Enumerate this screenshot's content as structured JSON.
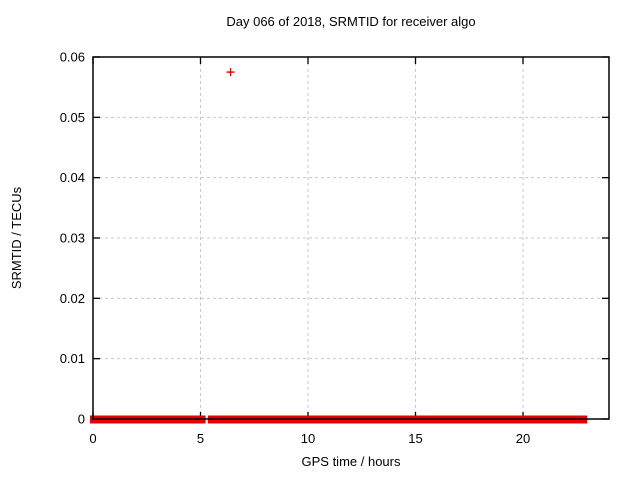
{
  "window": {
    "background": "#ffffff"
  },
  "chart_data": {
    "type": "scatter",
    "title": "Day 066 of 2018, SRMTID for receiver algo",
    "xlabel": "GPS time / hours",
    "ylabel": "SRMTID / TECUs",
    "xlim": [
      0,
      24
    ],
    "ylim": [
      0,
      0.06
    ],
    "xticks": {
      "values": [
        0,
        5,
        10,
        15,
        20
      ],
      "labels": [
        "0",
        "5",
        "10",
        "15",
        "20"
      ]
    },
    "yticks": {
      "values": [
        0,
        0.01,
        0.02,
        0.03,
        0.04,
        0.05,
        0.06
      ],
      "labels": [
        "0",
        "0.01",
        "0.02",
        "0.03",
        "0.04",
        "0.05",
        "0.06"
      ]
    },
    "grid": "dashed",
    "legend": "none",
    "marker": "plus",
    "series": [
      {
        "name": "SRMTID",
        "color": "#e60000",
        "outlier_points": [
          {
            "x": 6.4,
            "y": 0.0575
          }
        ],
        "baseline_y": 0,
        "baseline_segments_hours": [
          [
            0.0,
            1.5
          ],
          [
            1.6,
            1.72
          ],
          [
            1.98,
            4.38
          ],
          [
            4.55,
            5.1
          ],
          [
            5.48,
            11.49
          ],
          [
            11.6,
            11.81
          ],
          [
            11.93,
            12.82
          ],
          [
            12.93,
            14.03
          ],
          [
            14.14,
            14.97
          ],
          [
            15.12,
            15.4
          ],
          [
            15.47,
            15.82
          ],
          [
            15.93,
            16.05
          ],
          [
            16.13,
            16.36
          ],
          [
            16.47,
            16.77
          ],
          [
            16.88,
            20.13
          ],
          [
            20.22,
            20.77
          ],
          [
            20.87,
            21.34
          ],
          [
            21.47,
            22.85
          ]
        ]
      }
    ],
    "colors": {
      "marker": "#e60000",
      "grid": "#c8c8c8",
      "border": "#000000",
      "text": "#000000"
    }
  }
}
